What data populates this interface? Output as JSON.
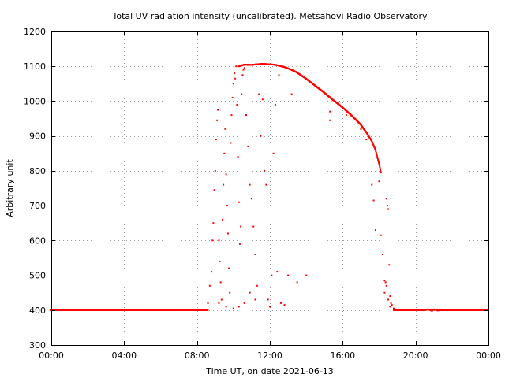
{
  "chart_data": {
    "type": "scatter",
    "title": "Total UV radiation intensity (uncalibrated). Metsähovi Radio Observatory",
    "xlabel": "Time UT, on date 2021-06-13",
    "ylabel": "Arbitrary unit",
    "xlim": [
      0,
      24
    ],
    "ylim": [
      300,
      1200
    ],
    "x_ticks": [
      {
        "value": 0,
        "label": "00:00"
      },
      {
        "value": 4,
        "label": "04:00"
      },
      {
        "value": 8,
        "label": "08:00"
      },
      {
        "value": 12,
        "label": "12:00"
      },
      {
        "value": 16,
        "label": "16:00"
      },
      {
        "value": 20,
        "label": "20:00"
      },
      {
        "value": 24,
        "label": "00:00"
      }
    ],
    "y_ticks": [
      300,
      400,
      500,
      600,
      700,
      800,
      900,
      1000,
      1100,
      1200
    ],
    "grid": true,
    "marker_color": "#ff0000",
    "series": [
      {
        "baseline_night_morning": [
          [
            0.0,
            400
          ],
          [
            1.0,
            400
          ],
          [
            2.0,
            400
          ],
          [
            3.0,
            400
          ],
          [
            4.0,
            400
          ],
          [
            5.0,
            400
          ],
          [
            6.0,
            400
          ],
          [
            7.0,
            400
          ],
          [
            8.0,
            400
          ],
          [
            8.6,
            400
          ]
        ],
        "scatter_morning": [
          [
            8.6,
            420
          ],
          [
            8.7,
            470
          ],
          [
            8.8,
            510
          ],
          [
            8.85,
            600
          ],
          [
            8.9,
            650
          ],
          [
            8.95,
            745
          ],
          [
            9.0,
            800
          ],
          [
            9.05,
            890
          ],
          [
            9.1,
            945
          ],
          [
            9.15,
            975
          ],
          [
            9.2,
            600
          ],
          [
            9.25,
            540
          ],
          [
            9.3,
            480
          ],
          [
            9.35,
            430
          ],
          [
            9.4,
            660
          ],
          [
            9.45,
            760
          ],
          [
            9.5,
            850
          ],
          [
            9.55,
            920
          ],
          [
            9.6,
            790
          ],
          [
            9.65,
            700
          ],
          [
            9.7,
            620
          ],
          [
            9.75,
            520
          ],
          [
            9.8,
            450
          ],
          [
            9.85,
            880
          ],
          [
            9.9,
            960
          ],
          [
            9.95,
            1010
          ],
          [
            10.0,
            1050
          ],
          [
            10.05,
            1080
          ],
          [
            10.1,
            1065
          ],
          [
            10.15,
            1100
          ],
          [
            10.2,
            990
          ],
          [
            10.25,
            840
          ],
          [
            10.3,
            710
          ],
          [
            10.35,
            590
          ],
          [
            10.4,
            640
          ],
          [
            10.45,
            1020
          ],
          [
            10.5,
            1075
          ],
          [
            10.55,
            1090
          ],
          [
            10.6,
            1095
          ],
          [
            10.7,
            960
          ],
          [
            10.8,
            870
          ],
          [
            10.9,
            760
          ],
          [
            11.0,
            720
          ],
          [
            11.1,
            640
          ],
          [
            11.2,
            560
          ],
          [
            11.3,
            470
          ],
          [
            11.4,
            1020
          ],
          [
            11.5,
            900
          ],
          [
            11.6,
            1005
          ],
          [
            11.7,
            800
          ],
          [
            11.8,
            760
          ],
          [
            11.9,
            430
          ],
          [
            12.0,
            410
          ],
          [
            12.1,
            500
          ],
          [
            12.2,
            850
          ],
          [
            12.3,
            990
          ],
          [
            12.4,
            510
          ],
          [
            12.5,
            1075
          ],
          [
            12.6,
            420
          ],
          [
            12.8,
            415
          ],
          [
            13.0,
            500
          ],
          [
            13.2,
            1020
          ],
          [
            13.5,
            480
          ],
          [
            14.0,
            500
          ],
          [
            9.2,
            420
          ],
          [
            9.6,
            410
          ],
          [
            10.0,
            405
          ],
          [
            10.3,
            410
          ],
          [
            10.6,
            420
          ],
          [
            10.9,
            450
          ],
          [
            11.2,
            430
          ]
        ],
        "envelope_curve": [
          [
            10.3,
            1100
          ],
          [
            10.6,
            1105
          ],
          [
            11.0,
            1104
          ],
          [
            11.3,
            1106
          ],
          [
            11.6,
            1107
          ],
          [
            11.9,
            1106
          ],
          [
            12.2,
            1105
          ],
          [
            12.5,
            1102
          ],
          [
            12.8,
            1098
          ],
          [
            13.1,
            1092
          ],
          [
            13.4,
            1085
          ],
          [
            13.7,
            1075
          ],
          [
            14.0,
            1064
          ],
          [
            14.3,
            1052
          ],
          [
            14.6,
            1040
          ],
          [
            14.9,
            1028
          ],
          [
            15.2,
            1015
          ],
          [
            15.5,
            1002
          ],
          [
            15.8,
            990
          ],
          [
            16.1,
            977
          ],
          [
            16.4,
            963
          ],
          [
            16.7,
            948
          ],
          [
            17.0,
            932
          ],
          [
            17.3,
            910
          ],
          [
            17.6,
            885
          ],
          [
            17.8,
            860
          ],
          [
            18.0,
            820
          ],
          [
            18.1,
            795
          ]
        ],
        "scatter_evening": [
          [
            15.3,
            970
          ],
          [
            15.3,
            945
          ],
          [
            16.2,
            960
          ],
          [
            17.0,
            920
          ],
          [
            17.3,
            890
          ],
          [
            17.6,
            760
          ],
          [
            17.7,
            715
          ],
          [
            17.8,
            630
          ],
          [
            18.0,
            770
          ],
          [
            18.1,
            615
          ],
          [
            18.2,
            560
          ],
          [
            18.3,
            485
          ],
          [
            18.4,
            720
          ],
          [
            18.45,
            700
          ],
          [
            18.5,
            690
          ],
          [
            18.55,
            530
          ],
          [
            18.6,
            440
          ],
          [
            18.65,
            420
          ],
          [
            18.3,
            450
          ],
          [
            18.35,
            480
          ],
          [
            18.4,
            470
          ],
          [
            18.5,
            430
          ],
          [
            18.6,
            410
          ],
          [
            18.7,
            415
          ],
          [
            18.8,
            405
          ]
        ],
        "baseline_evening": [
          [
            18.8,
            400
          ],
          [
            19.5,
            400
          ],
          [
            20.0,
            400
          ],
          [
            20.5,
            400
          ],
          [
            20.7,
            402
          ],
          [
            20.9,
            398
          ],
          [
            21.0,
            402
          ],
          [
            21.2,
            399
          ],
          [
            21.5,
            400
          ],
          [
            22.0,
            400
          ],
          [
            23.0,
            400
          ],
          [
            24.0,
            400
          ]
        ]
      }
    ]
  }
}
